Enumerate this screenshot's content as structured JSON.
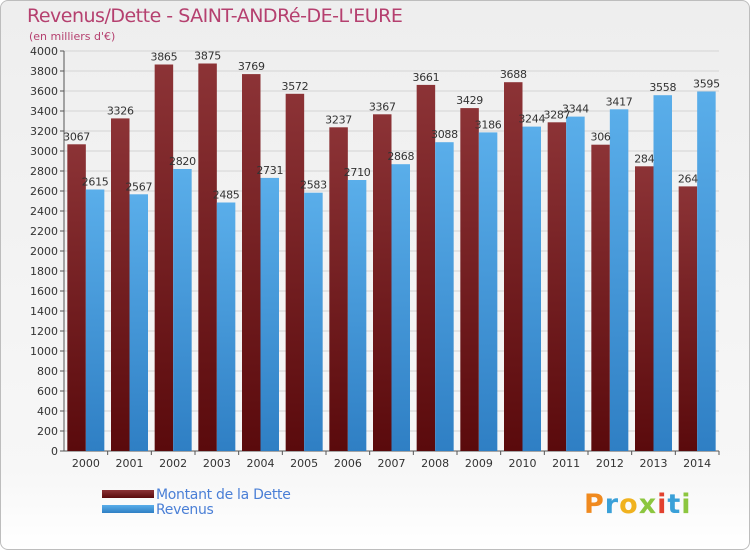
{
  "title": "Revenus/Dette - SAINT-ANDRé-DE-L'EURE",
  "subtitle": "(en milliers d'€)",
  "brand": {
    "text": "Proxiti",
    "letters": [
      "P",
      "r",
      "o",
      "x",
      "i",
      "t",
      "i"
    ],
    "colors": [
      "#f08a1f",
      "#3aa0d8",
      "#f0b21f",
      "#8cc63f",
      "#e2412f",
      "#3aa0d8",
      "#8cc63f"
    ]
  },
  "legend": [
    {
      "label": "Montant de la Dette",
      "color": "#7a1f22"
    },
    {
      "label": "Revenus",
      "color": "#4a9fe0"
    }
  ],
  "chart_data": {
    "type": "bar",
    "categories": [
      "2000",
      "2001",
      "2002",
      "2003",
      "2004",
      "2005",
      "2006",
      "2007",
      "2008",
      "2009",
      "2010",
      "2011",
      "2012",
      "2013",
      "2014"
    ],
    "series": [
      {
        "name": "Montant de la Dette",
        "color": "#7a1f22",
        "values": [
          3067,
          3326,
          3865,
          3875,
          3769,
          3572,
          3237,
          3367,
          3661,
          3429,
          3688,
          3287,
          3063,
          2847,
          2646
        ],
        "labels": [
          "3067",
          "3326",
          "3865",
          "3875",
          "3769",
          "3572",
          "3237",
          "3367",
          "3661",
          "3429",
          "3688",
          "3287",
          "306",
          "284",
          "264"
        ]
      },
      {
        "name": "Revenus",
        "color": "#4a9fe0",
        "values": [
          2615,
          2567,
          2820,
          2485,
          2731,
          2583,
          2710,
          2868,
          3088,
          3186,
          3244,
          3344,
          3417,
          3558,
          3595
        ],
        "labels": [
          "2615",
          "2567",
          "2820",
          "2485",
          "2731",
          "2583",
          "2710",
          "2868",
          "3088",
          "3186",
          "3244",
          "3344",
          "3417",
          "3558",
          "3595"
        ]
      }
    ],
    "ylim": [
      0,
      4000
    ],
    "ytick_step": 200,
    "grid": true,
    "legend_position": "bottom-left"
  }
}
